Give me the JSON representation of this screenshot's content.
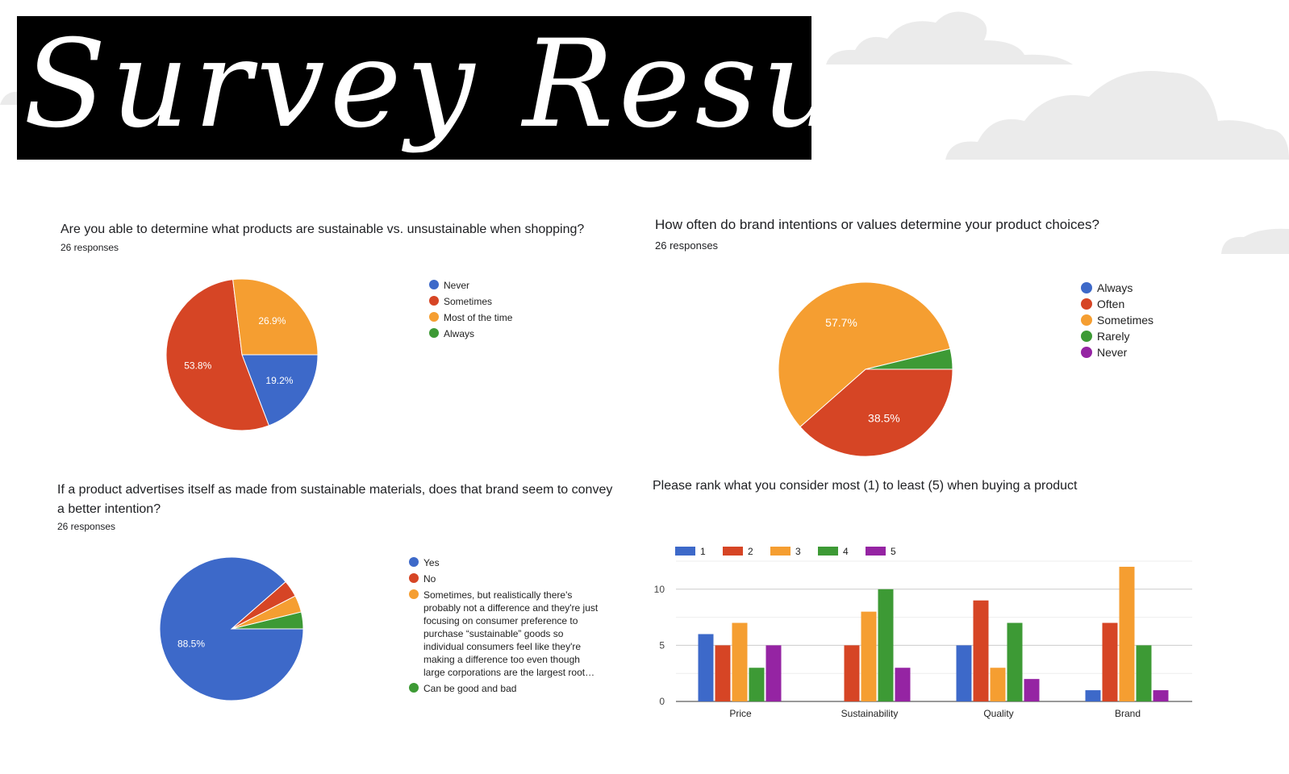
{
  "banner": {
    "title": "Survey Results"
  },
  "colors": {
    "blue": "#3d69c9",
    "red": "#d64525",
    "orange": "#f59e31",
    "green": "#3d9a35",
    "purple": "#9524a3"
  },
  "chart_data": [
    {
      "type": "pie",
      "title": "Are you able to determine what products are sustainable vs. unsustainable when shopping?",
      "subtitle": "26 responses",
      "labels": [
        "Never",
        "Sometimes",
        "Most of the time",
        "Always"
      ],
      "values": [
        19.2,
        53.8,
        26.9,
        0
      ],
      "slice_labels": [
        "19.2%",
        "53.8%",
        "26.9%",
        ""
      ],
      "legend_position": "right"
    },
    {
      "type": "pie",
      "title": "How often do brand intentions or values determine your product choices?",
      "subtitle": "26 responses",
      "labels": [
        "Always",
        "Often",
        "Sometimes",
        "Rarely",
        "Never"
      ],
      "values": [
        0,
        38.5,
        57.7,
        3.8,
        0
      ],
      "slice_labels": [
        "",
        "38.5%",
        "57.7%",
        "",
        ""
      ],
      "legend_position": "right"
    },
    {
      "type": "pie",
      "title": "If a product advertises itself as made from sustainable materials, does that brand seem to convey a better intention?",
      "subtitle": "26 responses",
      "labels": [
        "Yes",
        "No",
        "Sometimes, but realistically there's probably not a difference and they're just focusing on consumer preference to purchase “sustainable” goods so individual consumers feel like they're making a difference too even though large corporations are the largest root…",
        "Can be good and bad"
      ],
      "values": [
        88.5,
        3.8,
        3.8,
        3.8
      ],
      "slice_labels": [
        "88.5%",
        "",
        "",
        ""
      ],
      "legend_position": "right"
    },
    {
      "type": "bar",
      "title": "Please rank what you consider most (1) to least (5) when buying a product",
      "categories": [
        "Price",
        "Sustainability",
        "Quality",
        "Brand"
      ],
      "series": [
        {
          "name": "1",
          "values": [
            6,
            0,
            5,
            1
          ]
        },
        {
          "name": "2",
          "values": [
            5,
            5,
            9,
            7
          ]
        },
        {
          "name": "3",
          "values": [
            7,
            8,
            3,
            12
          ]
        },
        {
          "name": "4",
          "values": [
            3,
            10,
            7,
            5
          ]
        },
        {
          "name": "5",
          "values": [
            5,
            3,
            2,
            1
          ]
        }
      ],
      "yticks": [
        "0",
        "5",
        "10"
      ],
      "ylim": [
        0,
        12.5
      ],
      "grid": true,
      "legend_position": "top"
    }
  ]
}
